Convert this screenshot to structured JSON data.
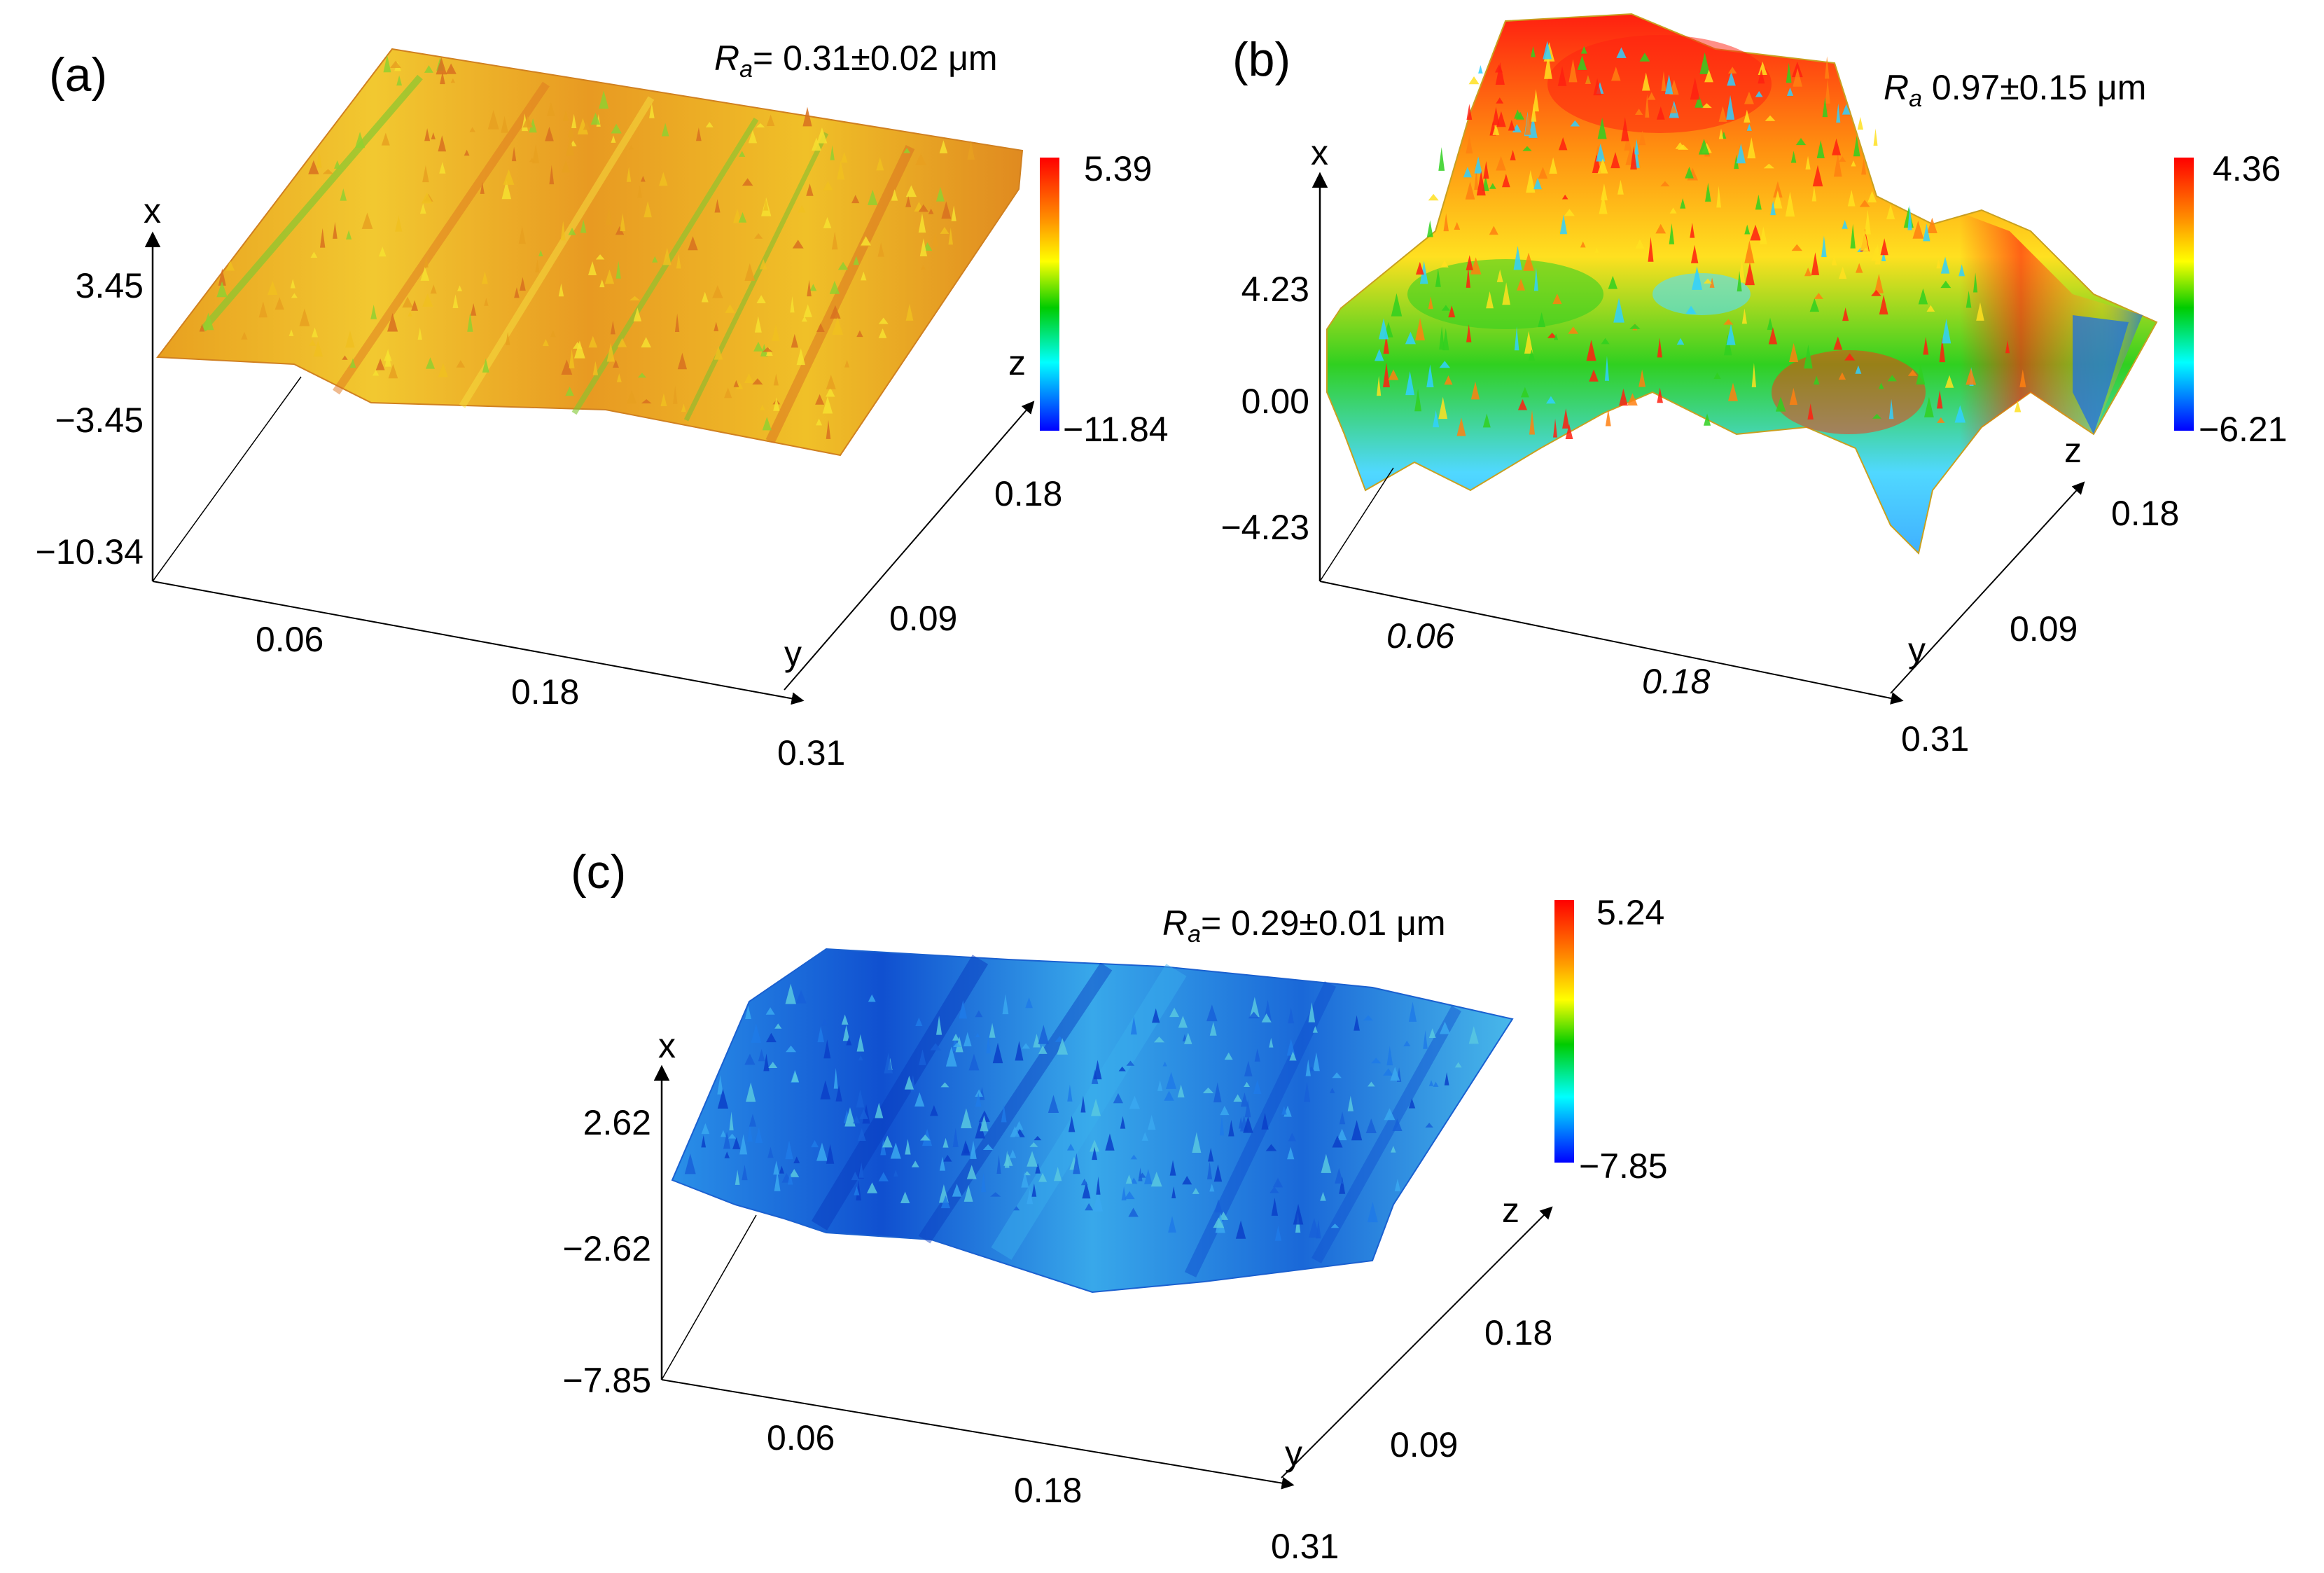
{
  "chart_data": [
    {
      "type": "heatmap",
      "panel_label": "(a)",
      "roughness": {
        "symbol": "R",
        "subscript": "a",
        "text": "= 0.31±0.02 μm",
        "value": 0.31,
        "error": 0.02,
        "unit": "μm"
      },
      "colorbar": {
        "max_label": "5.39",
        "min_label": "−11.84",
        "max": 5.39,
        "min": -11.84
      },
      "axes": {
        "z_axis_label": "x",
        "z_ticks": [
          "3.45",
          "−3.45",
          "−10.34"
        ],
        "x_axis_label": "y",
        "x_ticks": [
          "0.06",
          "0.18",
          "0.31"
        ],
        "depth_axis_label": "z",
        "depth_ticks": [
          "0.09",
          "0.18"
        ]
      },
      "surface_palette": "orange-yellow"
    },
    {
      "type": "heatmap",
      "panel_label": "(b)",
      "roughness": {
        "symbol": "R",
        "subscript": "a",
        "text": " 0.97±0.15 μm",
        "value": 0.97,
        "error": 0.15,
        "unit": "μm"
      },
      "colorbar": {
        "max_label": "4.36",
        "min_label": "−6.21",
        "max": 4.36,
        "min": -6.21
      },
      "axes": {
        "z_axis_label": "x",
        "z_ticks": [
          "4.23",
          "0.00",
          "−4.23"
        ],
        "x_axis_label": "y",
        "x_ticks": [
          "0.06",
          "0.18",
          "0.31"
        ],
        "depth_axis_label": "z",
        "depth_ticks": [
          "0.09",
          "0.18"
        ]
      },
      "surface_palette": "multicolor"
    },
    {
      "type": "heatmap",
      "panel_label": "(c)",
      "roughness": {
        "symbol": "R",
        "subscript": "a",
        "text": "= 0.29±0.01 μm",
        "value": 0.29,
        "error": 0.01,
        "unit": "μm"
      },
      "colorbar": {
        "max_label": "5.24",
        "min_label": "−7.85",
        "max": 5.24,
        "min": -7.85
      },
      "axes": {
        "z_axis_label": "x",
        "z_ticks": [
          "2.62",
          "−2.62",
          "−7.85"
        ],
        "x_axis_label": "y",
        "x_ticks": [
          "0.06",
          "0.18",
          "0.31"
        ],
        "depth_axis_label": "z",
        "depth_ticks": [
          "0.09",
          "0.18"
        ]
      },
      "surface_palette": "blue"
    }
  ],
  "colors": {
    "colorbar_stops": [
      "#ff0000",
      "#ff8c00",
      "#ffff00",
      "#00cc00",
      "#00ffff",
      "#0000ff"
    ],
    "palette_a": [
      "#e8a020",
      "#f0c020",
      "#f6e030",
      "#d87020",
      "#90d030"
    ],
    "palette_b": [
      "#ff2010",
      "#ff8010",
      "#ffe020",
      "#30d020",
      "#30d0ff"
    ],
    "palette_c": [
      "#1860d8",
      "#1f7ae8",
      "#3aa8f0",
      "#0a40c8",
      "#58c8e0"
    ]
  }
}
